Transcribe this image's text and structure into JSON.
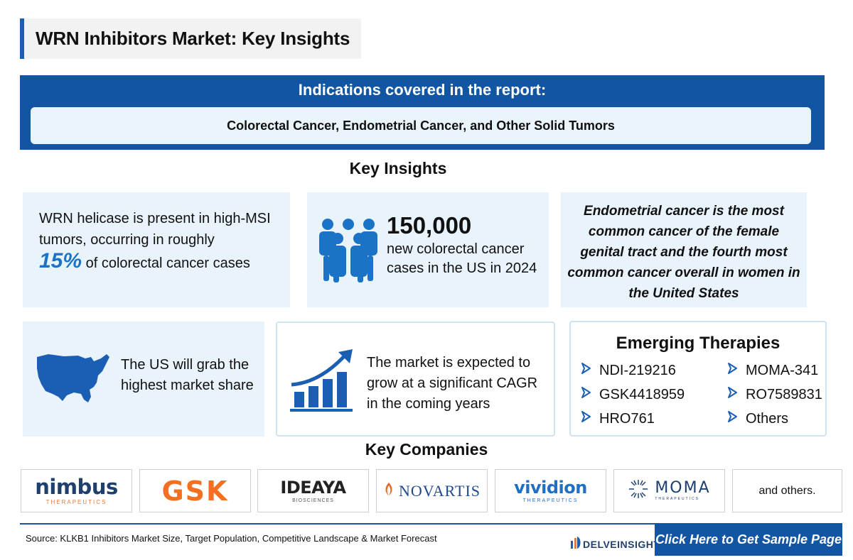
{
  "title": "WRN Inhibitors Market: Key Insights",
  "indications": {
    "heading": "Indications covered in the report:",
    "list": "Colorectal Cancer, Endometrial Cancer, and Other Solid Tumors"
  },
  "key_insights": {
    "heading": "Key Insights",
    "card1": {
      "line1": "WRN helicase is present in high-MSI tumors, occurring in roughly",
      "highlight": "15%",
      "line2": " of colorectal cancer cases"
    },
    "card2": {
      "number": "150,000",
      "text": "new colorectal cancer cases in the US in 2024",
      "icon": "people-group-icon"
    },
    "card3": {
      "text": "Endometrial cancer is the most common cancer of the female genital tract and the fourth most common cancer overall in women in the United States"
    },
    "card4": {
      "text": "The US will grab the highest market share",
      "icon": "us-map-icon"
    },
    "card5": {
      "text": "The market is expected to grow at a significant CAGR in the coming years",
      "icon": "growth-chart-icon"
    },
    "emerging": {
      "heading": "Emerging Therapies",
      "items": [
        "NDI-219216",
        "MOMA-341",
        "GSK4418959",
        "RO7589831",
        "HRO761",
        "Others"
      ]
    }
  },
  "companies": {
    "heading": "Key Companies",
    "logos": [
      {
        "name": "nimbus",
        "sub": "THERAPEUTICS"
      },
      {
        "name": "GSK"
      },
      {
        "name": "IDEAYA",
        "sub": "BIOSCIENCES"
      },
      {
        "name": "NOVARTIS"
      },
      {
        "name": "vividion",
        "sub": "THERAPEUTICS"
      },
      {
        "name": "MOMA",
        "sub": "THERAPEUTICS"
      }
    ],
    "others": "and others."
  },
  "footer": {
    "source": "Source: KLKB1 Inhibitors Market Size, Target Population, Competitive Landscape & Market Forecast",
    "brand": "DELVEINSIGHT",
    "cta": "Click Here to Get Sample Page"
  },
  "colors": {
    "primary": "#1255a3",
    "accent": "#1a73c7",
    "card_bg": "#e9f3fb"
  }
}
